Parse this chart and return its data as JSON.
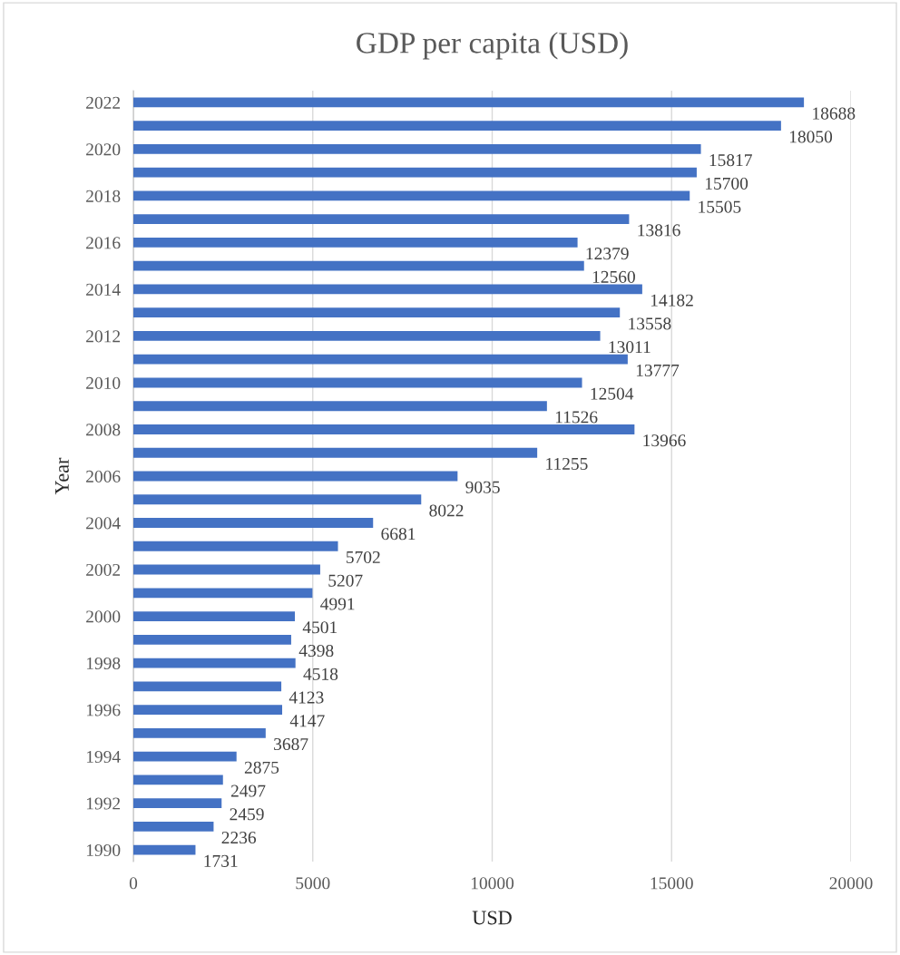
{
  "chart_data": {
    "type": "bar",
    "orientation": "horizontal",
    "title": "GDP per capita (USD)",
    "xlabel": "USD",
    "ylabel": "Year",
    "categories": [
      "2022",
      null,
      "2020",
      null,
      "2018",
      null,
      "2016",
      null,
      "2014",
      null,
      "2012",
      null,
      "2010",
      null,
      "2008",
      null,
      "2006",
      null,
      "2004",
      null,
      "2002",
      null,
      "2000",
      null,
      "1998",
      null,
      "1996",
      null,
      "1994",
      null,
      "1992",
      null,
      "1990"
    ],
    "values": [
      18688,
      18050,
      15817,
      15700,
      15505,
      13816,
      12379,
      12560,
      14182,
      13558,
      13011,
      13777,
      12504,
      11526,
      13966,
      11255,
      9035,
      8022,
      6681,
      5702,
      5207,
      4991,
      4501,
      4398,
      4518,
      4123,
      4147,
      3687,
      2875,
      2497,
      2459,
      2236,
      1731
    ],
    "color": "#4472c4",
    "xlim": [
      0,
      20000
    ],
    "xticks": [
      0,
      5000,
      10000,
      15000,
      20000
    ],
    "grid": "x",
    "data_labels": true
  }
}
